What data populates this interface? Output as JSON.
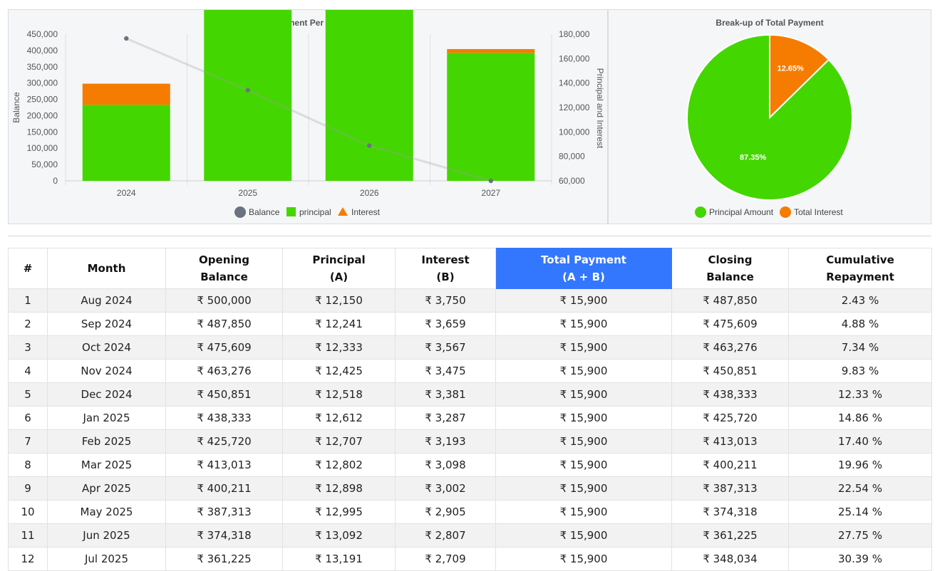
{
  "bar_chart": {
    "chart_data": {
      "type": "bar",
      "title": "Payment Per Year",
      "categories": [
        "2024",
        "2025",
        "2026",
        "2027"
      ],
      "series": [
        {
          "name": "principal",
          "values": [
            62220,
            153500,
            172500,
            104700
          ],
          "color": "#44d600",
          "kind": "stacked-bar"
        },
        {
          "name": "Interest",
          "values": [
            17280,
            37300,
            18300,
            3100
          ],
          "color": "#f57c00",
          "kind": "stacked-bar"
        },
        {
          "name": "Balance",
          "values": [
            437000,
            278000,
            108000,
            0
          ],
          "color": "#6b7280",
          "kind": "line"
        }
      ],
      "left_axis": {
        "label": "Balance",
        "range": [
          0,
          450000
        ],
        "ticks": [
          "0",
          "50,000",
          "100,000",
          "150,000",
          "200,000",
          "250,000",
          "300,000",
          "350,000",
          "400,000",
          "450,000"
        ]
      },
      "right_axis": {
        "label": "Principal and Interest",
        "range": [
          60000,
          180000
        ],
        "ticks": [
          "60,000",
          "80,000",
          "100,000",
          "120,000",
          "140,000",
          "160,000",
          "180,000"
        ]
      },
      "legend": [
        "Balance",
        "principal",
        "Interest"
      ],
      "legend_position": "bottom"
    }
  },
  "pie_chart": {
    "chart_data": {
      "type": "pie",
      "title": "Break-up of Total Payment",
      "slices": [
        {
          "name": "Principal Amount",
          "value": 87.35,
          "label": "87.35%",
          "color": "#44d600"
        },
        {
          "name": "Total Interest",
          "value": 12.65,
          "label": "12.65%",
          "color": "#f57c00"
        }
      ],
      "legend_position": "bottom"
    }
  },
  "table": {
    "headers": [
      {
        "l1": "#",
        "l2": ""
      },
      {
        "l1": "Month",
        "l2": ""
      },
      {
        "l1": "Opening",
        "l2": "Balance"
      },
      {
        "l1": "Principal",
        "l2": "(A)"
      },
      {
        "l1": "Interest",
        "l2": "(B)"
      },
      {
        "l1": "Total Payment",
        "l2": "(A + B)"
      },
      {
        "l1": "Closing",
        "l2": "Balance"
      },
      {
        "l1": "Cumulative",
        "l2": "Repayment"
      }
    ],
    "highlight_color": "#3377ff",
    "rows": [
      [
        "1",
        "Aug 2024",
        "₹ 500,000",
        "₹ 12,150",
        "₹ 3,750",
        "₹ 15,900",
        "₹ 487,850",
        "2.43 %"
      ],
      [
        "2",
        "Sep 2024",
        "₹ 487,850",
        "₹ 12,241",
        "₹ 3,659",
        "₹ 15,900",
        "₹ 475,609",
        "4.88 %"
      ],
      [
        "3",
        "Oct 2024",
        "₹ 475,609",
        "₹ 12,333",
        "₹ 3,567",
        "₹ 15,900",
        "₹ 463,276",
        "7.34 %"
      ],
      [
        "4",
        "Nov 2024",
        "₹ 463,276",
        "₹ 12,425",
        "₹ 3,475",
        "₹ 15,900",
        "₹ 450,851",
        "9.83 %"
      ],
      [
        "5",
        "Dec 2024",
        "₹ 450,851",
        "₹ 12,518",
        "₹ 3,381",
        "₹ 15,900",
        "₹ 438,333",
        "12.33 %"
      ],
      [
        "6",
        "Jan 2025",
        "₹ 438,333",
        "₹ 12,612",
        "₹ 3,287",
        "₹ 15,900",
        "₹ 425,720",
        "14.86 %"
      ],
      [
        "7",
        "Feb 2025",
        "₹ 425,720",
        "₹ 12,707",
        "₹ 3,193",
        "₹ 15,900",
        "₹ 413,013",
        "17.40 %"
      ],
      [
        "8",
        "Mar 2025",
        "₹ 413,013",
        "₹ 12,802",
        "₹ 3,098",
        "₹ 15,900",
        "₹ 400,211",
        "19.96 %"
      ],
      [
        "9",
        "Apr 2025",
        "₹ 400,211",
        "₹ 12,898",
        "₹ 3,002",
        "₹ 15,900",
        "₹ 387,313",
        "22.54 %"
      ],
      [
        "10",
        "May 2025",
        "₹ 387,313",
        "₹ 12,995",
        "₹ 2,905",
        "₹ 15,900",
        "₹ 374,318",
        "25.14 %"
      ],
      [
        "11",
        "Jun 2025",
        "₹ 374,318",
        "₹ 13,092",
        "₹ 2,807",
        "₹ 15,900",
        "₹ 361,225",
        "27.75 %"
      ],
      [
        "12",
        "Jul 2025",
        "₹ 361,225",
        "₹ 13,191",
        "₹ 2,709",
        "₹ 15,900",
        "₹ 348,034",
        "30.39 %"
      ]
    ]
  }
}
